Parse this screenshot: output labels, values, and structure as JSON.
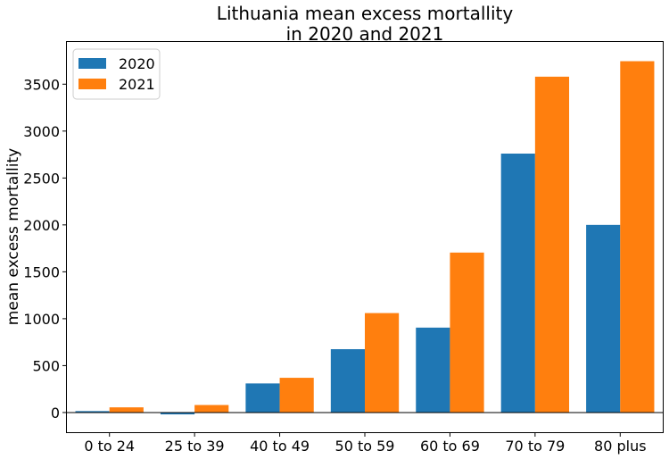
{
  "chart_data": {
    "type": "bar",
    "title_lines": [
      "Lithuania mean excess mortallity",
      "in 2020 and 2021"
    ],
    "xlabel": "",
    "ylabel": "mean excess mortallity",
    "categories": [
      "0 to 24",
      "25 to 39",
      "40 to 49",
      "50 to 59",
      "60 to 69",
      "70 to 79",
      "80 plus"
    ],
    "series": [
      {
        "name": "2020",
        "color": "#1f77b4",
        "values": [
          15,
          -20,
          310,
          675,
          905,
          2760,
          2000
        ]
      },
      {
        "name": "2021",
        "color": "#ff7f0e",
        "values": [
          55,
          80,
          370,
          1060,
          1705,
          3580,
          3745
        ]
      }
    ],
    "ylim": [
      -210,
      3950
    ],
    "yticks": [
      0,
      500,
      1000,
      1500,
      2000,
      2500,
      3000,
      3500
    ],
    "zero_line": true,
    "grid": false,
    "legend_position": "top-left"
  }
}
